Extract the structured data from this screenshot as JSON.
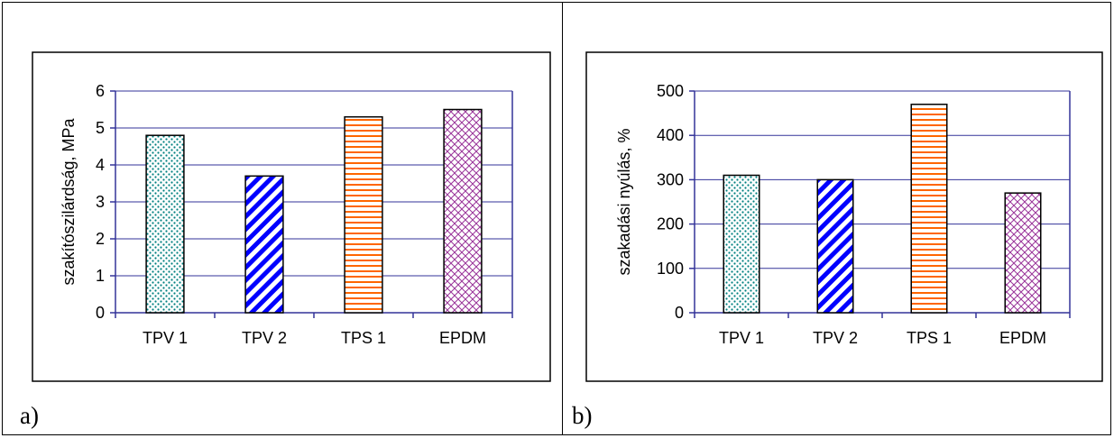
{
  "panels": [
    {
      "label": "a)"
    },
    {
      "label": "b)"
    }
  ],
  "chart_data": [
    {
      "type": "bar",
      "categories": [
        "TPV 1",
        "TPV 2",
        "TPS 1",
        "EPDM"
      ],
      "values": [
        4.8,
        3.7,
        5.3,
        5.5
      ],
      "ylabel": "szakítószilárdság, MPa",
      "xlabel": "",
      "ylim": [
        0,
        6
      ],
      "yticks": [
        0,
        1,
        2,
        3,
        4,
        5,
        6
      ],
      "grid": true
    },
    {
      "type": "bar",
      "categories": [
        "TPV 1",
        "TPV 2",
        "TPS 1",
        "EPDM"
      ],
      "values": [
        310,
        300,
        470,
        270
      ],
      "ylabel": "szakadási nyúlás, %",
      "xlabel": "",
      "ylim": [
        0,
        500
      ],
      "yticks": [
        0,
        100,
        200,
        300,
        400,
        500
      ],
      "grid": true
    }
  ],
  "colors": {
    "axis": "#333399",
    "grid": "#333399",
    "tpv1": "#008080",
    "tpv2": "#0000ff",
    "tps1": "#ff6600",
    "epdm": "#993399"
  }
}
